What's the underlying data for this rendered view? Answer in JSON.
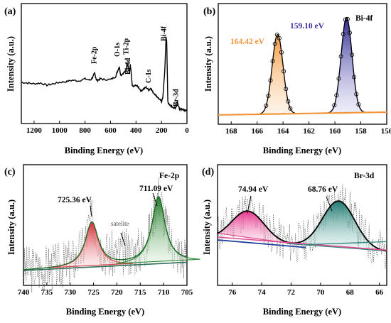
{
  "chart_data": [
    {
      "type": "line",
      "panel": "(a)",
      "xlabel": "Binding Energy (eV)",
      "ylabel": "Intensity (a.u.)",
      "xlim": [
        1300,
        0
      ],
      "xticks": [
        1200,
        1000,
        800,
        600,
        400,
        200,
        0
      ],
      "series": [
        {
          "x": [
            1300,
            1250,
            1200,
            1150,
            1100,
            1050,
            1000,
            950,
            900,
            850,
            800,
            760,
            740,
            725,
            711,
            700,
            680,
            650,
            600,
            560,
            545,
            531,
            520,
            500,
            480,
            470,
            459,
            450,
            445,
            440,
            430,
            420,
            400,
            380,
            360,
            340,
            320,
            300,
            285,
            270,
            250,
            230,
            210,
            200,
            190,
            175,
            164,
            159,
            150,
            140,
            120,
            100,
            90,
            80,
            75,
            69,
            60,
            50,
            40,
            20,
            10,
            0
          ],
          "values": [
            0.42,
            0.41,
            0.4,
            0.41,
            0.38,
            0.4,
            0.42,
            0.43,
            0.45,
            0.44,
            0.47,
            0.45,
            0.49,
            0.55,
            0.46,
            0.45,
            0.47,
            0.46,
            0.46,
            0.5,
            0.58,
            0.64,
            0.52,
            0.55,
            0.58,
            0.7,
            0.62,
            0.56,
            0.66,
            0.6,
            0.38,
            0.36,
            0.38,
            0.35,
            0.3,
            0.33,
            0.35,
            0.31,
            0.34,
            0.29,
            0.25,
            0.21,
            0.17,
            0.15,
            0.2,
            0.55,
            1.05,
            1.0,
            0.15,
            0.1,
            0.08,
            0.06,
            0.07,
            0.09,
            0.15,
            0.1,
            0.05,
            0.04,
            0.04,
            0.03,
            0.03,
            0.02
          ]
        }
      ],
      "annotations": [
        {
          "text": "Fe-2p",
          "x": 711
        },
        {
          "text": "O-1s",
          "x": 531
        },
        {
          "text": "Ti-2p",
          "x": 459
        },
        {
          "text": "Bi-4d",
          "x": 445
        },
        {
          "text": "C-1s",
          "x": 285
        },
        {
          "text": "Bi-4f",
          "x": 164
        },
        {
          "text": "Br-3d",
          "x": 69
        }
      ]
    },
    {
      "type": "line",
      "panel": "(b)",
      "title": "Bi-4f",
      "xlabel": "Binding Energy (eV)",
      "ylabel": "Intensity (a.u.)",
      "xlim": [
        169,
        156
      ],
      "xticks": [
        168,
        166,
        164,
        162,
        160,
        158,
        156
      ],
      "peaks": [
        {
          "label": "164.42 eV",
          "center": 164.42,
          "height": 1.0,
          "color": "#f0973c"
        },
        {
          "label": "159.10 eV",
          "center": 159.1,
          "height": 1.2,
          "color": "#3a2f9c"
        }
      ]
    },
    {
      "type": "line",
      "panel": "(c)",
      "title": "Fe-2p",
      "xlabel": "Binding Energy (eV)",
      "ylabel": "Intensity (a.u.)",
      "xlim": [
        740,
        705
      ],
      "xticks": [
        740,
        735,
        730,
        725,
        720,
        715,
        710,
        705
      ],
      "peaks": [
        {
          "label": "725.36 eV",
          "center": 725.36,
          "height": 0.5,
          "color": "#d9434a"
        },
        {
          "label": "711.09 eV",
          "center": 711.09,
          "height": 0.75,
          "color": "#2f8a38"
        }
      ],
      "annotations": [
        {
          "text": "satelite",
          "x": 718
        }
      ]
    },
    {
      "type": "line",
      "panel": "(d)",
      "title": "Br-3d",
      "xlabel": "Binding Energy (eV)",
      "ylabel": "Intensity (a.u.)",
      "xlim": [
        77,
        65.5
      ],
      "xticks": [
        76,
        74,
        72,
        70,
        68,
        66
      ],
      "peaks": [
        {
          "label": "74.94 eV",
          "center": 74.94,
          "height": 0.35,
          "color": "#e0478f"
        },
        {
          "label": "68.76 eV",
          "center": 68.76,
          "height": 0.55,
          "color": "#2e857a"
        }
      ]
    }
  ]
}
